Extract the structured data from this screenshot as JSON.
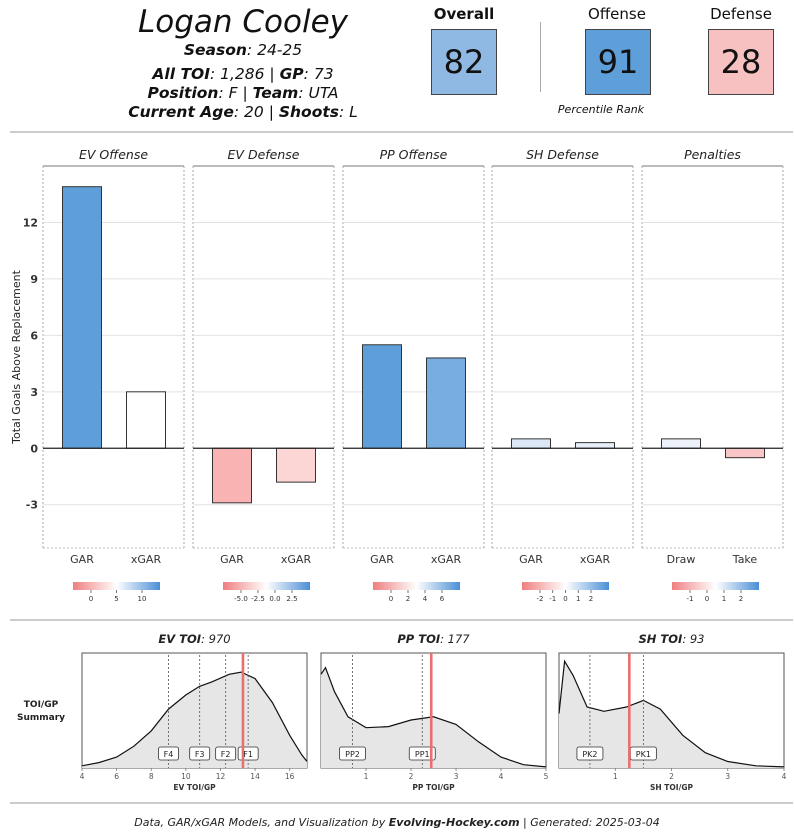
{
  "header": {
    "player_name": "Logan Cooley",
    "season_label": "Season",
    "season": "24-25",
    "toi_label": "All TOI",
    "toi": "1,286",
    "gp_label": "GP",
    "gp": "73",
    "position_label": "Position",
    "position": "F",
    "team_label": "Team",
    "team": "UTA",
    "age_label": "Current Age",
    "age": "20",
    "shoots_label": "Shoots",
    "shoots": "L"
  },
  "percentile": {
    "caption": "Percentile Rank",
    "items": [
      {
        "label": "Overall",
        "value": "82",
        "color": "#8fb9e3"
      },
      {
        "label": "Offense",
        "value": "91",
        "color": "#5f9fd9"
      },
      {
        "label": "Defense",
        "value": "28",
        "color": "#f7c1c1"
      }
    ]
  },
  "footer": {
    "prefix": "Data, GAR/xGAR Models, and Visualization by",
    "brand": "Evolving-Hockey.com",
    "suffix": "| Generated: 2025-03-04"
  },
  "chart_data": [
    {
      "type": "bar",
      "ylabel": "Total Goals Above Replacement",
      "ylim": [
        -5.3,
        15.0
      ],
      "yticks": [
        -3,
        0,
        3,
        6,
        9,
        12
      ],
      "panels": [
        {
          "title": "EV Offense",
          "categories": [
            "GAR",
            "xGAR"
          ],
          "values": [
            13.9,
            3.0
          ],
          "colors": [
            "#5f9fd9",
            "#ffffff"
          ],
          "legend_ticks": [
            "0",
            "5",
            "10"
          ]
        },
        {
          "title": "EV Defense",
          "categories": [
            "GAR",
            "xGAR"
          ],
          "values": [
            -2.9,
            -1.8
          ],
          "colors": [
            "#f9b3b3",
            "#fcd5d5"
          ],
          "legend_ticks": [
            "-5.0",
            "-2.5",
            "0.0",
            "2.5"
          ]
        },
        {
          "title": "PP Offense",
          "categories": [
            "GAR",
            "xGAR"
          ],
          "values": [
            5.5,
            4.8
          ],
          "colors": [
            "#5f9fd9",
            "#77ade0"
          ],
          "legend_ticks": [
            "0",
            "2",
            "4",
            "6"
          ]
        },
        {
          "title": "SH Defense",
          "categories": [
            "GAR",
            "xGAR"
          ],
          "values": [
            0.5,
            0.3
          ],
          "colors": [
            "#dce8f6",
            "#e6eef8"
          ],
          "legend_ticks": [
            "-2",
            "-1",
            "0",
            "1",
            "2"
          ]
        },
        {
          "title": "Penalties",
          "categories": [
            "Draw",
            "Take"
          ],
          "values": [
            0.5,
            -0.5
          ],
          "colors": [
            "#edf2fa",
            "#f8c6c6"
          ],
          "legend_ticks": [
            "-1",
            "0",
            "1",
            "2"
          ]
        }
      ]
    },
    {
      "type": "area",
      "summary_label": "TOI/GP Summary",
      "panels": [
        {
          "title_label": "EV TOI",
          "title_value": "970",
          "xlabel": "EV TOI/GP",
          "xlim": [
            4,
            17
          ],
          "xticks": [
            4,
            6,
            8,
            10,
            12,
            14,
            16
          ],
          "player_value": 13.3,
          "markers": [
            {
              "label": "F4",
              "x": 9.0
            },
            {
              "label": "F3",
              "x": 10.8
            },
            {
              "label": "F2",
              "x": 12.3
            },
            {
              "label": "F1",
              "x": 13.6
            }
          ],
          "density": [
            [
              4,
              0.02
            ],
            [
              5,
              0.05
            ],
            [
              6,
              0.1
            ],
            [
              7,
              0.2
            ],
            [
              8,
              0.34
            ],
            [
              9,
              0.54
            ],
            [
              10,
              0.67
            ],
            [
              10.8,
              0.75
            ],
            [
              11.5,
              0.79
            ],
            [
              12.5,
              0.86
            ],
            [
              13.2,
              0.88
            ],
            [
              14,
              0.82
            ],
            [
              15,
              0.6
            ],
            [
              16,
              0.3
            ],
            [
              16.7,
              0.12
            ],
            [
              17,
              0.06
            ]
          ]
        },
        {
          "title_label": "PP TOI",
          "title_value": "177",
          "xlabel": "PP TOI/GP",
          "xlim": [
            0,
            5
          ],
          "xticks": [
            1,
            2,
            3,
            4,
            5
          ],
          "player_value": 2.45,
          "markers": [
            {
              "label": "PP2",
              "x": 0.7
            },
            {
              "label": "PP1",
              "x": 2.25
            }
          ],
          "density": [
            [
              0,
              0.86
            ],
            [
              0.1,
              0.92
            ],
            [
              0.3,
              0.7
            ],
            [
              0.6,
              0.47
            ],
            [
              1.0,
              0.37
            ],
            [
              1.5,
              0.38
            ],
            [
              2.0,
              0.44
            ],
            [
              2.5,
              0.47
            ],
            [
              3.0,
              0.4
            ],
            [
              3.5,
              0.24
            ],
            [
              4.0,
              0.1
            ],
            [
              4.5,
              0.03
            ],
            [
              5.0,
              0.01
            ]
          ]
        },
        {
          "title_label": "SH TOI",
          "title_value": "93",
          "xlabel": "SH TOI/GP",
          "xlim": [
            0,
            4
          ],
          "xticks": [
            1,
            2,
            3,
            4
          ],
          "player_value": 1.25,
          "markers": [
            {
              "label": "PK2",
              "x": 0.55
            },
            {
              "label": "PK1",
              "x": 1.5
            }
          ],
          "density": [
            [
              0,
              0.5
            ],
            [
              0.1,
              0.98
            ],
            [
              0.25,
              0.85
            ],
            [
              0.5,
              0.56
            ],
            [
              0.8,
              0.52
            ],
            [
              1.2,
              0.56
            ],
            [
              1.5,
              0.62
            ],
            [
              1.8,
              0.54
            ],
            [
              2.2,
              0.3
            ],
            [
              2.6,
              0.14
            ],
            [
              3.0,
              0.06
            ],
            [
              3.5,
              0.02
            ],
            [
              4.0,
              0.01
            ]
          ]
        }
      ]
    }
  ]
}
